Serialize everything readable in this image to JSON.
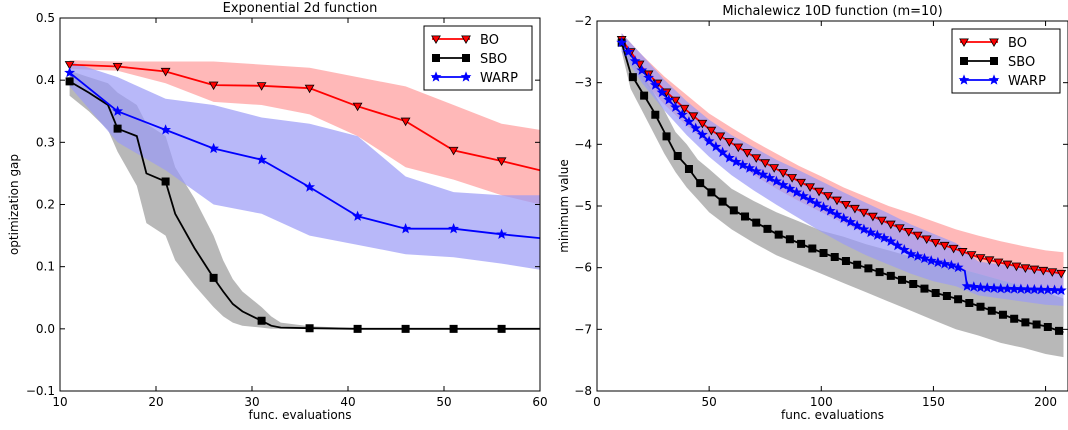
{
  "chart_data": [
    {
      "type": "line",
      "title": "Exponential 2d function",
      "xlabel": "func. evaluations",
      "ylabel": "optimization gap",
      "xlim": [
        10,
        60
      ],
      "ylim": [
        -0.1,
        0.5
      ],
      "xticks": [
        10,
        20,
        30,
        40,
        50,
        60
      ],
      "yticks": [
        -0.1,
        0.0,
        0.1,
        0.2,
        0.3,
        0.4,
        0.5
      ],
      "ytick_labels": [
        "−0.1",
        "0.0",
        "0.1",
        "0.2",
        "0.3",
        "0.4",
        "0.5"
      ],
      "grid": false,
      "legend_position": "top-right",
      "series": [
        {
          "name": "BO",
          "color": "#ff0000",
          "band_color": "#ff9a9a",
          "marker": "triangle-down",
          "x": [
            11,
            16,
            21,
            26,
            31,
            36,
            41,
            46,
            51,
            56,
            60
          ],
          "values": [
            0.425,
            0.422,
            0.414,
            0.392,
            0.391,
            0.387,
            0.358,
            0.334,
            0.287,
            0.27,
            0.255
          ],
          "band_x": [
            11,
            16,
            21,
            26,
            31,
            36,
            41,
            46,
            51,
            56,
            60
          ],
          "band_low": [
            0.418,
            0.415,
            0.395,
            0.365,
            0.36,
            0.345,
            0.31,
            0.26,
            0.24,
            0.215,
            0.2
          ],
          "band_high": [
            0.432,
            0.43,
            0.43,
            0.43,
            0.425,
            0.42,
            0.405,
            0.39,
            0.36,
            0.33,
            0.32
          ],
          "marker_x": [
            11,
            16,
            21,
            26,
            31,
            36,
            41,
            46,
            51,
            56
          ]
        },
        {
          "name": "SBO",
          "color": "#000000",
          "band_color": "#9a9a9a",
          "marker": "square",
          "x": [
            11,
            13,
            15,
            16,
            18,
            19,
            21,
            22,
            24,
            26,
            27,
            28,
            29,
            31,
            32,
            33,
            36,
            41,
            46,
            51,
            56,
            60
          ],
          "values": [
            0.398,
            0.38,
            0.36,
            0.322,
            0.31,
            0.25,
            0.237,
            0.185,
            0.13,
            0.082,
            0.06,
            0.04,
            0.028,
            0.013,
            0.005,
            0.002,
            0.001,
            0.0,
            0.0,
            0.0,
            0.0,
            0.0
          ],
          "band_x": [
            11,
            13,
            15,
            16,
            18,
            19,
            21,
            22,
            24,
            26,
            27,
            28,
            29,
            31,
            32,
            33,
            36,
            41,
            46,
            51,
            56,
            60
          ],
          "band_low": [
            0.375,
            0.35,
            0.32,
            0.285,
            0.23,
            0.17,
            0.15,
            0.11,
            0.07,
            0.035,
            0.02,
            0.01,
            0.005,
            0.002,
            0.0,
            0.0,
            0.0,
            0.0,
            0.0,
            0.0,
            0.0,
            0.0
          ],
          "band_high": [
            0.415,
            0.405,
            0.395,
            0.38,
            0.36,
            0.33,
            0.31,
            0.26,
            0.21,
            0.15,
            0.11,
            0.08,
            0.06,
            0.035,
            0.02,
            0.01,
            0.004,
            0.001,
            0.0,
            0.0,
            0.0,
            0.0
          ],
          "marker_x": [
            11,
            16,
            21,
            26,
            31,
            36,
            41,
            46,
            51,
            56
          ]
        },
        {
          "name": "WARP",
          "color": "#0000ff",
          "band_color": "#9a9af7",
          "marker": "star",
          "x": [
            11,
            16,
            21,
            26,
            31,
            36,
            41,
            46,
            51,
            56,
            60
          ],
          "values": [
            0.412,
            0.35,
            0.32,
            0.29,
            0.272,
            0.228,
            0.181,
            0.161,
            0.161,
            0.152,
            0.146
          ],
          "band_x": [
            11,
            16,
            21,
            26,
            31,
            36,
            41,
            46,
            51,
            56,
            60
          ],
          "band_low": [
            0.39,
            0.3,
            0.255,
            0.2,
            0.185,
            0.15,
            0.135,
            0.12,
            0.115,
            0.105,
            0.095
          ],
          "band_high": [
            0.43,
            0.405,
            0.37,
            0.36,
            0.34,
            0.33,
            0.31,
            0.245,
            0.22,
            0.215,
            0.215
          ],
          "marker_x": [
            11,
            16,
            21,
            26,
            31,
            36,
            41,
            46,
            51,
            56
          ]
        }
      ]
    },
    {
      "type": "line",
      "title": "Michalewicz 10D function (m=10)",
      "xlabel": "func. evaluations",
      "ylabel": "minimum value",
      "xlim": [
        0,
        210
      ],
      "ylim": [
        -8,
        -2
      ],
      "xticks": [
        0,
        50,
        100,
        150,
        200
      ],
      "yticks": [
        -8,
        -7,
        -6,
        -5,
        -4,
        -3,
        -2
      ],
      "ytick_labels": [
        "−8",
        "−7",
        "−6",
        "−5",
        "−4",
        "−3",
        "−2"
      ],
      "grid": false,
      "legend_position": "top-right",
      "series": [
        {
          "name": "BO",
          "color": "#ff0000",
          "band_color": "#ff9a9a",
          "marker": "triangle-down",
          "x": [
            11,
            20,
            30,
            40,
            50,
            60,
            70,
            80,
            90,
            100,
            110,
            120,
            130,
            140,
            150,
            160,
            170,
            180,
            190,
            200,
            208
          ],
          "values": [
            -2.3,
            -2.75,
            -3.12,
            -3.45,
            -3.75,
            -3.98,
            -4.2,
            -4.4,
            -4.6,
            -4.78,
            -4.96,
            -5.12,
            -5.28,
            -5.43,
            -5.58,
            -5.7,
            -5.83,
            -5.92,
            -6.0,
            -6.05,
            -6.1
          ],
          "band_x": [
            11,
            20,
            30,
            40,
            50,
            60,
            70,
            80,
            90,
            100,
            110,
            120,
            130,
            140,
            150,
            160,
            170,
            180,
            190,
            200,
            208
          ],
          "band_low": [
            -2.4,
            -2.95,
            -3.35,
            -3.7,
            -4.0,
            -4.27,
            -4.5,
            -4.72,
            -4.92,
            -5.1,
            -5.28,
            -5.45,
            -5.6,
            -5.75,
            -5.9,
            -6.0,
            -6.1,
            -6.2,
            -6.3,
            -6.35,
            -6.4
          ],
          "band_high": [
            -2.2,
            -2.55,
            -2.9,
            -3.2,
            -3.5,
            -3.73,
            -3.95,
            -4.15,
            -4.35,
            -4.52,
            -4.7,
            -4.85,
            -5.0,
            -5.12,
            -5.25,
            -5.38,
            -5.48,
            -5.57,
            -5.65,
            -5.72,
            -5.75
          ],
          "marker_x": [
            11,
            15,
            19,
            23,
            27,
            31,
            35,
            39,
            43,
            47,
            51,
            55,
            59,
            63,
            67,
            71,
            75,
            79,
            83,
            87,
            91,
            95,
            99,
            103,
            107,
            111,
            115,
            119,
            123,
            127,
            131,
            135,
            139,
            143,
            147,
            151,
            155,
            159,
            163,
            167,
            171,
            175,
            179,
            183,
            187,
            191,
            195,
            199,
            203,
            207
          ]
        },
        {
          "name": "SBO",
          "color": "#000000",
          "band_color": "#9a9a9a",
          "marker": "square",
          "x": [
            11,
            15,
            20,
            25,
            30,
            35,
            40,
            45,
            50,
            60,
            70,
            80,
            90,
            100,
            110,
            120,
            130,
            140,
            150,
            160,
            170,
            180,
            190,
            200,
            208
          ],
          "values": [
            -2.35,
            -2.85,
            -3.15,
            -3.45,
            -3.8,
            -4.15,
            -4.35,
            -4.6,
            -4.75,
            -5.05,
            -5.25,
            -5.45,
            -5.6,
            -5.75,
            -5.88,
            -6.0,
            -6.12,
            -6.25,
            -6.4,
            -6.5,
            -6.62,
            -6.75,
            -6.88,
            -6.95,
            -7.05
          ],
          "band_x": [
            11,
            15,
            20,
            25,
            30,
            35,
            40,
            45,
            50,
            60,
            70,
            80,
            90,
            100,
            110,
            120,
            130,
            140,
            150,
            160,
            170,
            180,
            190,
            200,
            208
          ],
          "band_low": [
            -2.5,
            -3.1,
            -3.45,
            -3.8,
            -4.15,
            -4.45,
            -4.7,
            -4.9,
            -5.1,
            -5.38,
            -5.6,
            -5.8,
            -5.95,
            -6.1,
            -6.25,
            -6.4,
            -6.55,
            -6.7,
            -6.85,
            -7.0,
            -7.1,
            -7.22,
            -7.3,
            -7.4,
            -7.45
          ],
          "band_high": [
            -2.2,
            -2.6,
            -2.85,
            -3.15,
            -3.45,
            -3.8,
            -4.0,
            -4.25,
            -4.4,
            -4.72,
            -4.92,
            -5.1,
            -5.25,
            -5.4,
            -5.5,
            -5.62,
            -5.72,
            -5.82,
            -5.92,
            -6.0,
            -6.1,
            -6.2,
            -6.3,
            -6.4,
            -6.5
          ],
          "marker_x": [
            11,
            16,
            21,
            26,
            31,
            36,
            41,
            46,
            51,
            56,
            61,
            66,
            71,
            76,
            81,
            86,
            91,
            96,
            101,
            106,
            111,
            116,
            121,
            126,
            131,
            136,
            141,
            146,
            151,
            156,
            161,
            166,
            171,
            176,
            181,
            186,
            191,
            196,
            201,
            206
          ]
        },
        {
          "name": "WARP",
          "color": "#0000ff",
          "band_color": "#9a9af7",
          "marker": "star",
          "x": [
            11,
            20,
            30,
            40,
            50,
            60,
            70,
            80,
            90,
            100,
            110,
            120,
            130,
            140,
            150,
            160,
            164,
            165,
            170,
            180,
            190,
            200,
            208
          ],
          "values": [
            -2.35,
            -2.8,
            -3.2,
            -3.6,
            -3.95,
            -4.25,
            -4.42,
            -4.6,
            -4.8,
            -5.0,
            -5.2,
            -5.4,
            -5.55,
            -5.78,
            -5.9,
            -5.98,
            -6.05,
            -6.3,
            -6.32,
            -6.34,
            -6.35,
            -6.36,
            -6.37
          ],
          "band_x": [
            11,
            20,
            30,
            40,
            50,
            60,
            70,
            80,
            90,
            100,
            110,
            120,
            130,
            140,
            150,
            160,
            170,
            180,
            190,
            200,
            208
          ],
          "band_low": [
            -2.5,
            -3.0,
            -3.45,
            -3.85,
            -4.2,
            -4.5,
            -4.75,
            -4.98,
            -5.2,
            -5.42,
            -5.62,
            -5.8,
            -5.95,
            -6.1,
            -6.22,
            -6.3,
            -6.45,
            -6.5,
            -6.55,
            -6.6,
            -6.62
          ],
          "band_high": [
            -2.2,
            -2.55,
            -2.95,
            -3.3,
            -3.6,
            -3.85,
            -4.05,
            -4.25,
            -4.42,
            -4.6,
            -4.78,
            -4.95,
            -5.12,
            -5.3,
            -5.45,
            -5.6,
            -5.9,
            -5.95,
            -5.98,
            -6.0,
            -6.05
          ],
          "marker_x": [
            11,
            14,
            17,
            20,
            23,
            26,
            29,
            32,
            35,
            38,
            41,
            44,
            47,
            50,
            53,
            56,
            59,
            62,
            65,
            68,
            71,
            74,
            77,
            80,
            83,
            86,
            89,
            92,
            95,
            98,
            101,
            104,
            107,
            110,
            113,
            116,
            119,
            122,
            125,
            128,
            131,
            134,
            137,
            140,
            143,
            146,
            149,
            152,
            155,
            158,
            161,
            165,
            168,
            171,
            174,
            177,
            180,
            183,
            186,
            189,
            192,
            195,
            198,
            201,
            204,
            207
          ]
        }
      ]
    }
  ]
}
